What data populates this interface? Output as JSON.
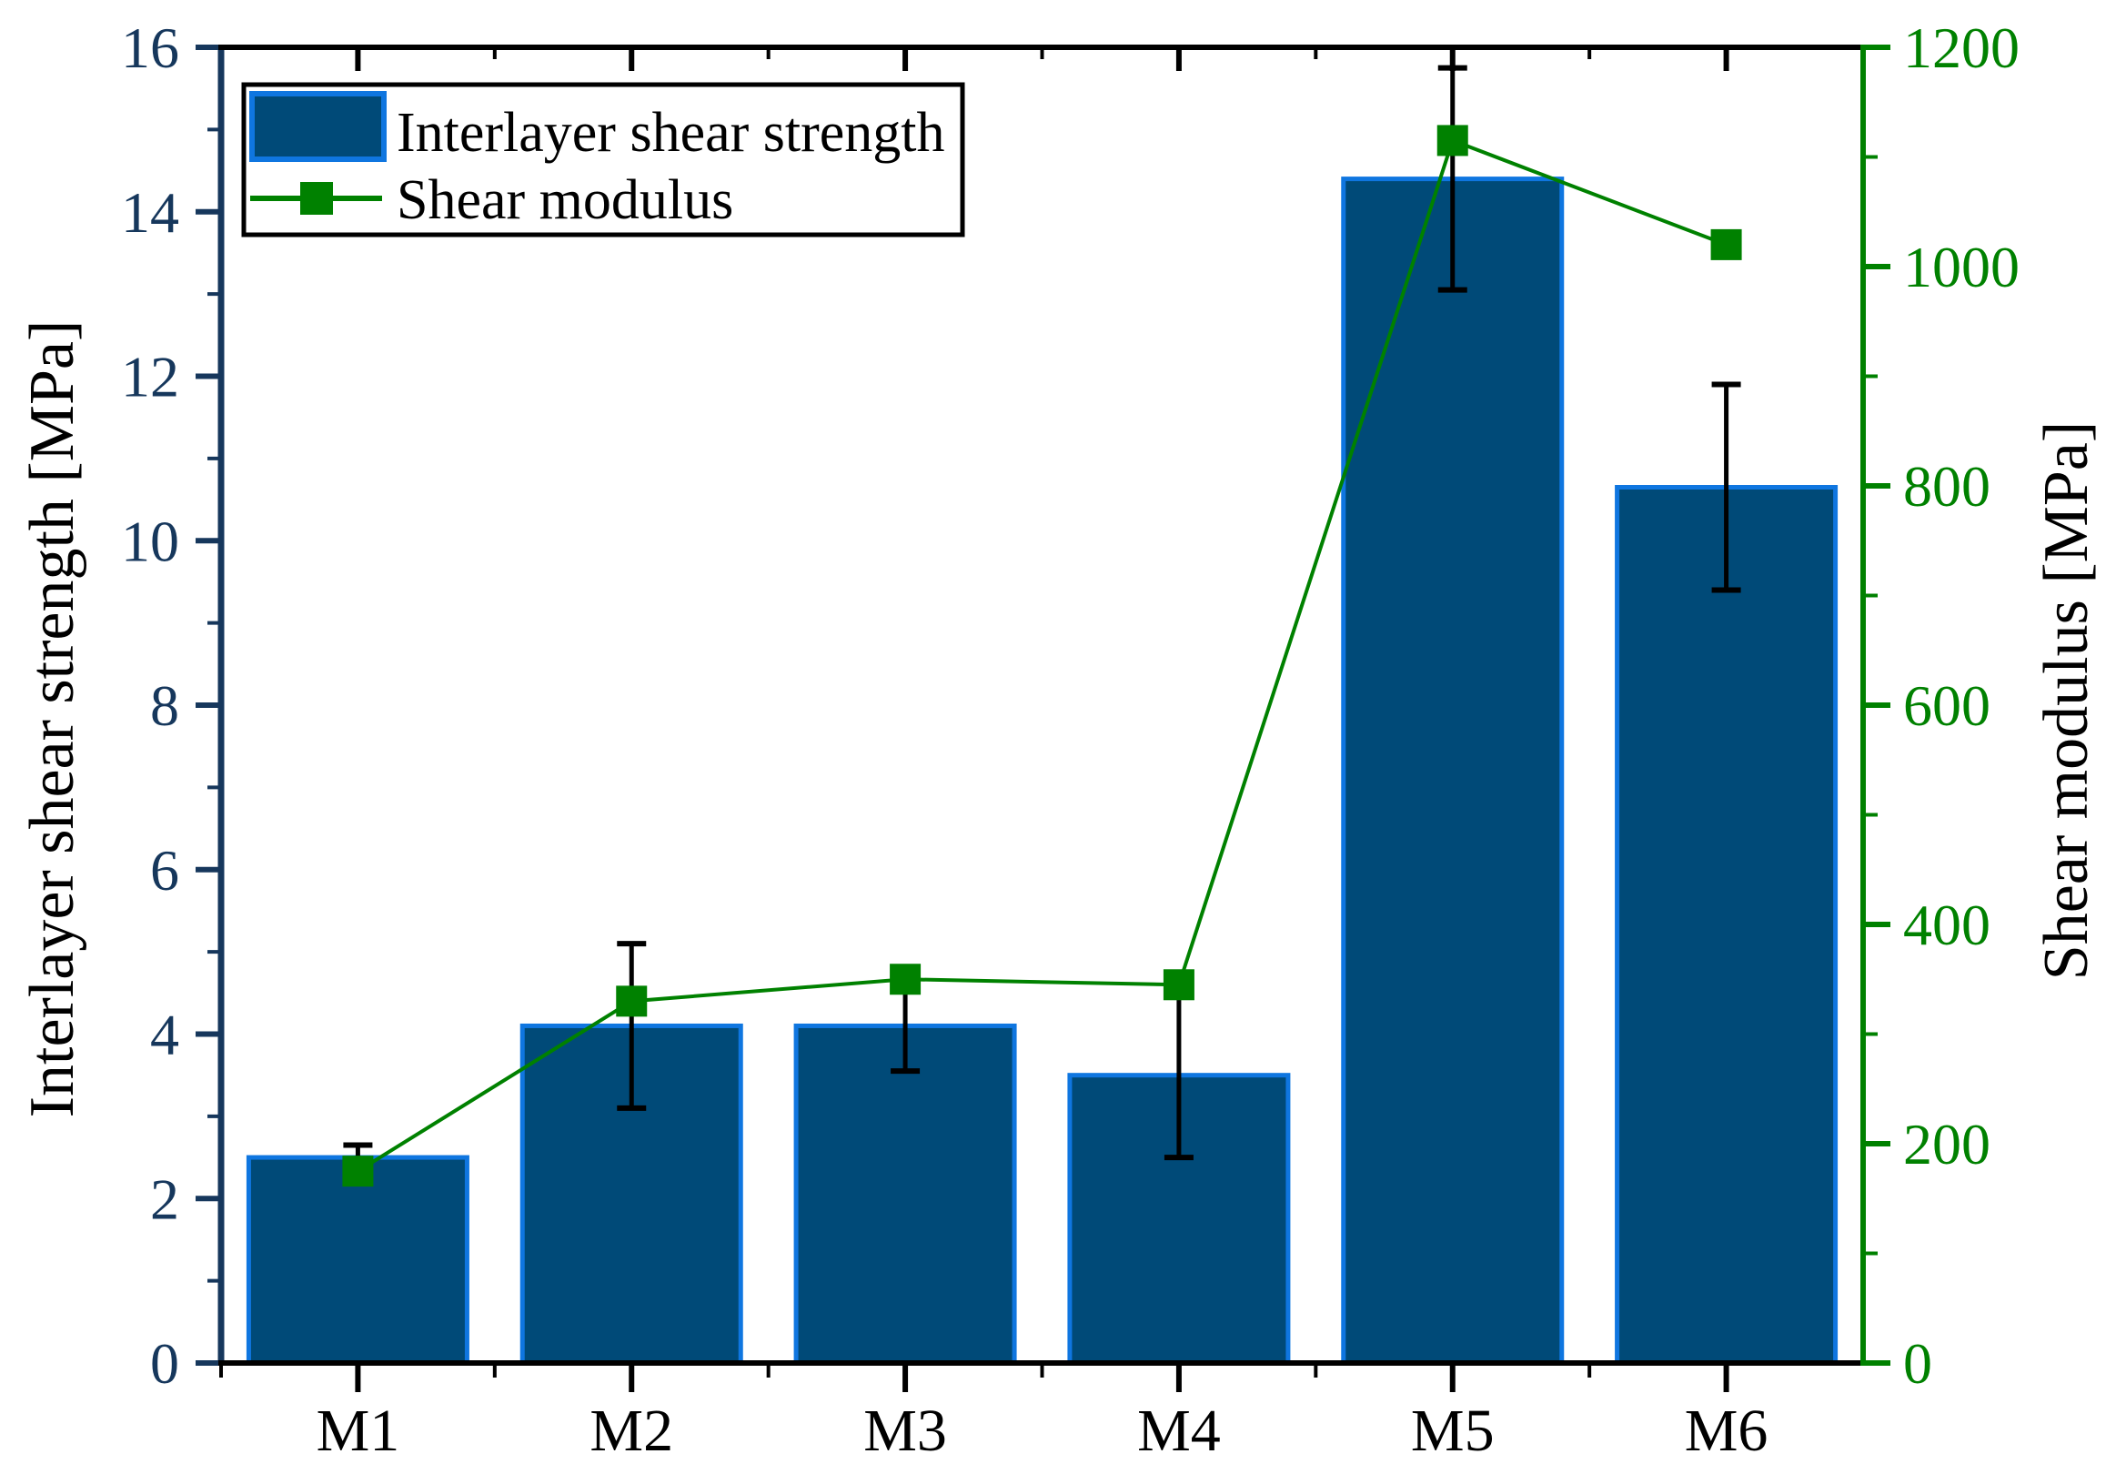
{
  "figure": {
    "left_axis_title": "Interlayer shear strength [MPa]",
    "right_axis_title": "Shear modulus [MPa]",
    "legend_entry_bar": "Interlayer shear strength",
    "legend_entry_line": "Shear modulus"
  },
  "colors": {
    "background": "#FFFFFF",
    "bar_fill": "#004A78",
    "bar_edge": "#0F76E0",
    "line_green": "#008100",
    "left_axis_color": "#16375C",
    "right_axis_color": "#008100",
    "black": "#000000"
  },
  "chart_data": {
    "type": "bar+line",
    "categories": [
      "M1",
      "M2",
      "M3",
      "M4",
      "M5",
      "M6"
    ],
    "series": [
      {
        "name": "Interlayer shear strength",
        "type": "bar",
        "axis": "left",
        "unit": "MPa",
        "values": [
          2.5,
          4.1,
          4.1,
          3.5,
          14.4,
          10.65
        ],
        "error_bars": [
          0.15,
          1.0,
          0.55,
          1.0,
          1.35,
          1.25
        ]
      },
      {
        "name": "Shear modulus",
        "type": "line",
        "axis": "right",
        "unit": "MPa",
        "marker": "square",
        "values": [
          175,
          330,
          350,
          345,
          1115,
          1020
        ]
      }
    ],
    "left_axis": {
      "label": "Interlayer shear strength [MPa]",
      "min": 0,
      "max": 16,
      "major_tick_step": 2,
      "minor_tick_step": 1,
      "tick_labels": [
        "0",
        "2",
        "4",
        "6",
        "8",
        "10",
        "12",
        "14",
        "16"
      ]
    },
    "right_axis": {
      "label": "Shear modulus [MPa]",
      "min": 0,
      "max": 1200,
      "major_tick_step": 200,
      "minor_tick_step": 100,
      "tick_labels": [
        "0",
        "200",
        "400",
        "600",
        "800",
        "1000",
        "1200"
      ]
    },
    "x_axis": {
      "tick_labels": [
        "M1",
        "M2",
        "M3",
        "M4",
        "M5",
        "M6"
      ]
    },
    "legend": {
      "position": "top-left",
      "entries": [
        "Interlayer shear strength",
        "Shear modulus"
      ]
    },
    "grid": false
  }
}
